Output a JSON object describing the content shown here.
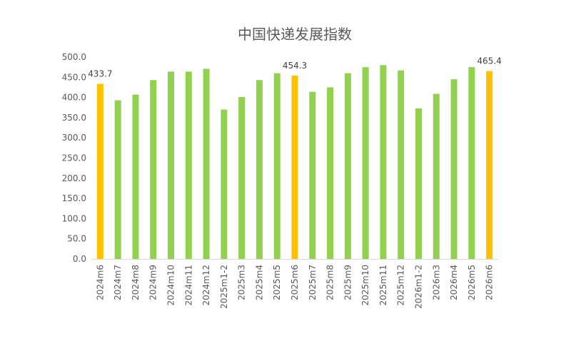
{
  "chart_data": {
    "type": "bar",
    "title": "中国快递发展指数",
    "xlabel": "",
    "ylabel": "",
    "ylim": [
      0,
      500
    ],
    "yticks": [
      "0.0",
      "50.0",
      "100.0",
      "150.0",
      "200.0",
      "250.0",
      "300.0",
      "350.0",
      "400.0",
      "450.0",
      "500.0"
    ],
    "grid": false,
    "legend": "none",
    "categories": [
      "2024m6",
      "2024m7",
      "2024m8",
      "2024m9",
      "2024m10",
      "2024m11",
      "2024m12",
      "2025m1-2",
      "2025m3",
      "2025m4",
      "2025m5",
      "2025m6",
      "2025m7",
      "2025m8",
      "2025m9",
      "2025m10",
      "2025m11",
      "2025m12",
      "2026m1-2",
      "2026m3",
      "2026m4",
      "2026m5",
      "2026m6"
    ],
    "values": [
      433.7,
      393,
      407,
      443,
      464,
      464,
      471,
      370,
      401,
      443,
      460,
      454.3,
      414,
      425,
      460,
      475,
      480,
      467,
      373,
      409,
      445,
      475,
      465.4
    ],
    "highlight_indices": [
      0,
      11,
      22
    ],
    "data_labels": [
      {
        "index": 0,
        "text": "433.7"
      },
      {
        "index": 11,
        "text": "454.3"
      },
      {
        "index": 22,
        "text": "465.4"
      }
    ],
    "colors": {
      "normal": "#92d050",
      "highlight": "#ffc000",
      "axis": "#d9d9d9"
    }
  }
}
